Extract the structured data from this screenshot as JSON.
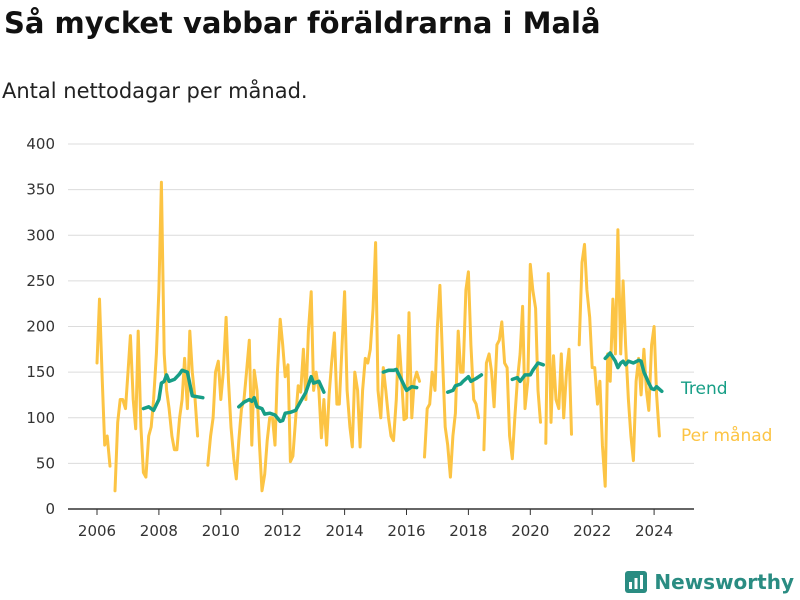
{
  "title": "Så mycket vabbar föräldrarna i Malå",
  "subtitle": "Antal nettodagar per månad.",
  "brand": {
    "name": "Newsworthy",
    "icon": "bar-chart-icon"
  },
  "chart_data": {
    "type": "line",
    "title": "Så mycket vabbar föräldrarna i Malå",
    "subtitle": "Antal nettodagar per månad.",
    "xlim": [
      2005.5,
      2025.2
    ],
    "ylim": [
      0,
      400
    ],
    "y_ticks": [
      0,
      50,
      100,
      150,
      200,
      250,
      300,
      350,
      400
    ],
    "x_ticks": [
      2006,
      2008,
      2010,
      2012,
      2014,
      2016,
      2018,
      2020,
      2022,
      2024
    ],
    "grid": true,
    "legend": "direct-labels-right",
    "series": [
      {
        "name": "Per månad",
        "color": "#fcc444",
        "points": [
          [
            2006.0,
            160
          ],
          [
            2006.08,
            230
          ],
          [
            2006.17,
            140
          ],
          [
            2006.25,
            70
          ],
          [
            2006.33,
            80
          ],
          [
            2006.42,
            47
          ],
          [
            2006.58,
            20
          ],
          [
            2006.67,
            95
          ],
          [
            2006.75,
            120
          ],
          [
            2006.83,
            120
          ],
          [
            2006.92,
            110
          ],
          [
            2007.0,
            150
          ],
          [
            2007.08,
            190
          ],
          [
            2007.17,
            120
          ],
          [
            2007.25,
            88
          ],
          [
            2007.33,
            195
          ],
          [
            2007.42,
            90
          ],
          [
            2007.5,
            40
          ],
          [
            2007.58,
            35
          ],
          [
            2007.67,
            80
          ],
          [
            2007.75,
            90
          ],
          [
            2007.83,
            120
          ],
          [
            2007.92,
            170
          ],
          [
            2008.0,
            240
          ],
          [
            2008.08,
            358
          ],
          [
            2008.17,
            170
          ],
          [
            2008.25,
            130
          ],
          [
            2008.33,
            110
          ],
          [
            2008.42,
            80
          ],
          [
            2008.5,
            65
          ],
          [
            2008.58,
            65
          ],
          [
            2008.67,
            100
          ],
          [
            2008.75,
            120
          ],
          [
            2008.83,
            165
          ],
          [
            2008.92,
            110
          ],
          [
            2009.0,
            195
          ],
          [
            2009.08,
            150
          ],
          [
            2009.17,
            120
          ],
          [
            2009.25,
            80
          ],
          [
            2009.58,
            48
          ],
          [
            2009.67,
            80
          ],
          [
            2009.75,
            100
          ],
          [
            2009.83,
            150
          ],
          [
            2009.92,
            162
          ],
          [
            2010.0,
            120
          ],
          [
            2010.08,
            150
          ],
          [
            2010.17,
            210
          ],
          [
            2010.25,
            140
          ],
          [
            2010.33,
            90
          ],
          [
            2010.42,
            55
          ],
          [
            2010.5,
            33
          ],
          [
            2010.58,
            75
          ],
          [
            2010.67,
            110
          ],
          [
            2010.75,
            120
          ],
          [
            2010.83,
            150
          ],
          [
            2010.92,
            185
          ],
          [
            2011.0,
            70
          ],
          [
            2011.08,
            152
          ],
          [
            2011.17,
            130
          ],
          [
            2011.25,
            70
          ],
          [
            2011.33,
            20
          ],
          [
            2011.42,
            38
          ],
          [
            2011.5,
            75
          ],
          [
            2011.58,
            100
          ],
          [
            2011.67,
            100
          ],
          [
            2011.75,
            70
          ],
          [
            2011.83,
            150
          ],
          [
            2011.92,
            208
          ],
          [
            2012.0,
            180
          ],
          [
            2012.08,
            145
          ],
          [
            2012.17,
            158
          ],
          [
            2012.25,
            52
          ],
          [
            2012.33,
            58
          ],
          [
            2012.42,
            100
          ],
          [
            2012.5,
            135
          ],
          [
            2012.58,
            128
          ],
          [
            2012.67,
            175
          ],
          [
            2012.75,
            120
          ],
          [
            2012.83,
            195
          ],
          [
            2012.92,
            238
          ],
          [
            2013.0,
            130
          ],
          [
            2013.08,
            150
          ],
          [
            2013.17,
            130
          ],
          [
            2013.25,
            78
          ],
          [
            2013.33,
            120
          ],
          [
            2013.42,
            70
          ],
          [
            2013.5,
            125
          ],
          [
            2013.58,
            160
          ],
          [
            2013.67,
            193
          ],
          [
            2013.75,
            115
          ],
          [
            2013.83,
            115
          ],
          [
            2013.92,
            180
          ],
          [
            2014.0,
            238
          ],
          [
            2014.08,
            130
          ],
          [
            2014.17,
            90
          ],
          [
            2014.25,
            68
          ],
          [
            2014.33,
            150
          ],
          [
            2014.42,
            130
          ],
          [
            2014.5,
            68
          ],
          [
            2014.58,
            130
          ],
          [
            2014.67,
            165
          ],
          [
            2014.75,
            160
          ],
          [
            2014.83,
            175
          ],
          [
            2014.92,
            220
          ],
          [
            2015.0,
            292
          ],
          [
            2015.08,
            130
          ],
          [
            2015.17,
            100
          ],
          [
            2015.25,
            155
          ],
          [
            2015.33,
            130
          ],
          [
            2015.42,
            100
          ],
          [
            2015.5,
            80
          ],
          [
            2015.58,
            75
          ],
          [
            2015.67,
            120
          ],
          [
            2015.75,
            190
          ],
          [
            2015.83,
            150
          ],
          [
            2015.92,
            98
          ],
          [
            2016.0,
            100
          ],
          [
            2016.08,
            215
          ],
          [
            2016.17,
            100
          ],
          [
            2016.25,
            140
          ],
          [
            2016.33,
            150
          ],
          [
            2016.42,
            140
          ],
          [
            2016.58,
            57
          ],
          [
            2016.67,
            110
          ],
          [
            2016.75,
            115
          ],
          [
            2016.83,
            150
          ],
          [
            2016.92,
            130
          ],
          [
            2017.0,
            200
          ],
          [
            2017.08,
            245
          ],
          [
            2017.17,
            160
          ],
          [
            2017.25,
            90
          ],
          [
            2017.33,
            70
          ],
          [
            2017.42,
            35
          ],
          [
            2017.5,
            80
          ],
          [
            2017.58,
            105
          ],
          [
            2017.67,
            195
          ],
          [
            2017.75,
            150
          ],
          [
            2017.83,
            150
          ],
          [
            2017.92,
            240
          ],
          [
            2018.0,
            260
          ],
          [
            2018.08,
            180
          ],
          [
            2018.17,
            120
          ],
          [
            2018.25,
            115
          ],
          [
            2018.33,
            100
          ],
          [
            2018.5,
            65
          ],
          [
            2018.58,
            160
          ],
          [
            2018.67,
            170
          ],
          [
            2018.75,
            150
          ],
          [
            2018.83,
            112
          ],
          [
            2018.92,
            180
          ],
          [
            2019.0,
            185
          ],
          [
            2019.08,
            205
          ],
          [
            2019.17,
            160
          ],
          [
            2019.25,
            155
          ],
          [
            2019.33,
            80
          ],
          [
            2019.42,
            55
          ],
          [
            2019.5,
            100
          ],
          [
            2019.58,
            140
          ],
          [
            2019.67,
            170
          ],
          [
            2019.75,
            222
          ],
          [
            2019.83,
            110
          ],
          [
            2019.92,
            140
          ],
          [
            2020.0,
            268
          ],
          [
            2020.08,
            240
          ],
          [
            2020.17,
            220
          ],
          [
            2020.25,
            130
          ],
          [
            2020.33,
            95
          ],
          [
            2020.5,
            72
          ],
          [
            2020.58,
            258
          ],
          [
            2020.67,
            95
          ],
          [
            2020.75,
            168
          ],
          [
            2020.83,
            120
          ],
          [
            2020.92,
            110
          ],
          [
            2021.0,
            170
          ],
          [
            2021.08,
            100
          ],
          [
            2021.17,
            150
          ],
          [
            2021.25,
            175
          ],
          [
            2021.33,
            82
          ],
          [
            2021.58,
            180
          ],
          [
            2021.67,
            270
          ],
          [
            2021.75,
            290
          ],
          [
            2021.83,
            240
          ],
          [
            2021.92,
            210
          ],
          [
            2022.0,
            155
          ],
          [
            2022.08,
            155
          ],
          [
            2022.17,
            115
          ],
          [
            2022.25,
            140
          ],
          [
            2022.33,
            70
          ],
          [
            2022.42,
            25
          ],
          [
            2022.5,
            170
          ],
          [
            2022.58,
            140
          ],
          [
            2022.67,
            230
          ],
          [
            2022.75,
            170
          ],
          [
            2022.83,
            306
          ],
          [
            2022.92,
            170
          ],
          [
            2023.0,
            250
          ],
          [
            2023.08,
            180
          ],
          [
            2023.17,
            120
          ],
          [
            2023.25,
            80
          ],
          [
            2023.33,
            53
          ],
          [
            2023.42,
            140
          ],
          [
            2023.5,
            165
          ],
          [
            2023.58,
            125
          ],
          [
            2023.67,
            175
          ],
          [
            2023.75,
            130
          ],
          [
            2023.83,
            108
          ],
          [
            2023.92,
            180
          ],
          [
            2024.0,
            200
          ],
          [
            2024.08,
            125
          ],
          [
            2024.17,
            80
          ]
        ]
      },
      {
        "name": "Trend",
        "color": "#179e86",
        "segments": [
          [
            [
              2007.5,
              110
            ],
            [
              2007.67,
              112
            ],
            [
              2007.83,
              108
            ],
            [
              2008.0,
              120
            ],
            [
              2008.08,
              138
            ],
            [
              2008.17,
              140
            ],
            [
              2008.25,
              147
            ],
            [
              2008.33,
              140
            ],
            [
              2008.5,
              142
            ],
            [
              2008.67,
              148
            ],
            [
              2008.75,
              152
            ],
            [
              2008.92,
              150
            ],
            [
              2009.08,
              124
            ],
            [
              2009.25,
              123
            ],
            [
              2009.42,
              122
            ]
          ],
          [
            [
              2010.58,
              112
            ],
            [
              2010.75,
              117
            ],
            [
              2010.92,
              120
            ],
            [
              2011.0,
              118
            ],
            [
              2011.08,
              122
            ],
            [
              2011.17,
              112
            ],
            [
              2011.33,
              110
            ],
            [
              2011.42,
              104
            ],
            [
              2011.58,
              105
            ],
            [
              2011.75,
              103
            ],
            [
              2011.92,
              96
            ],
            [
              2012.0,
              97
            ],
            [
              2012.08,
              105
            ],
            [
              2012.25,
              106
            ],
            [
              2012.42,
              108
            ],
            [
              2012.58,
              118
            ],
            [
              2012.75,
              128
            ],
            [
              2012.92,
              145
            ],
            [
              2013.0,
              138
            ],
            [
              2013.17,
              140
            ],
            [
              2013.33,
              128
            ]
          ],
          [
            [
              2015.25,
              150
            ],
            [
              2015.42,
              152
            ],
            [
              2015.58,
              152
            ],
            [
              2015.67,
              153
            ],
            [
              2015.83,
              142
            ],
            [
              2016.0,
              130
            ],
            [
              2016.17,
              134
            ],
            [
              2016.33,
              133
            ]
          ],
          [
            [
              2017.33,
              128
            ],
            [
              2017.5,
              130
            ],
            [
              2017.58,
              135
            ],
            [
              2017.75,
              137
            ],
            [
              2017.83,
              140
            ],
            [
              2018.0,
              145
            ],
            [
              2018.08,
              140
            ],
            [
              2018.25,
              143
            ],
            [
              2018.42,
              147
            ]
          ],
          [
            [
              2019.42,
              142
            ],
            [
              2019.58,
              144
            ],
            [
              2019.67,
              140
            ],
            [
              2019.83,
              147
            ],
            [
              2020.0,
              147
            ],
            [
              2020.08,
              152
            ],
            [
              2020.25,
              160
            ],
            [
              2020.42,
              158
            ]
          ],
          [
            [
              2022.42,
              165
            ],
            [
              2022.58,
              171
            ],
            [
              2022.75,
              162
            ],
            [
              2022.83,
              155
            ],
            [
              2022.92,
              160
            ],
            [
              2023.0,
              162
            ],
            [
              2023.08,
              158
            ],
            [
              2023.17,
              162
            ],
            [
              2023.33,
              160
            ],
            [
              2023.5,
              163
            ],
            [
              2023.58,
              162
            ],
            [
              2023.67,
              150
            ],
            [
              2023.83,
              138
            ],
            [
              2023.92,
              132
            ],
            [
              2024.0,
              131
            ],
            [
              2024.08,
              134
            ],
            [
              2024.25,
              129
            ]
          ]
        ]
      }
    ]
  }
}
